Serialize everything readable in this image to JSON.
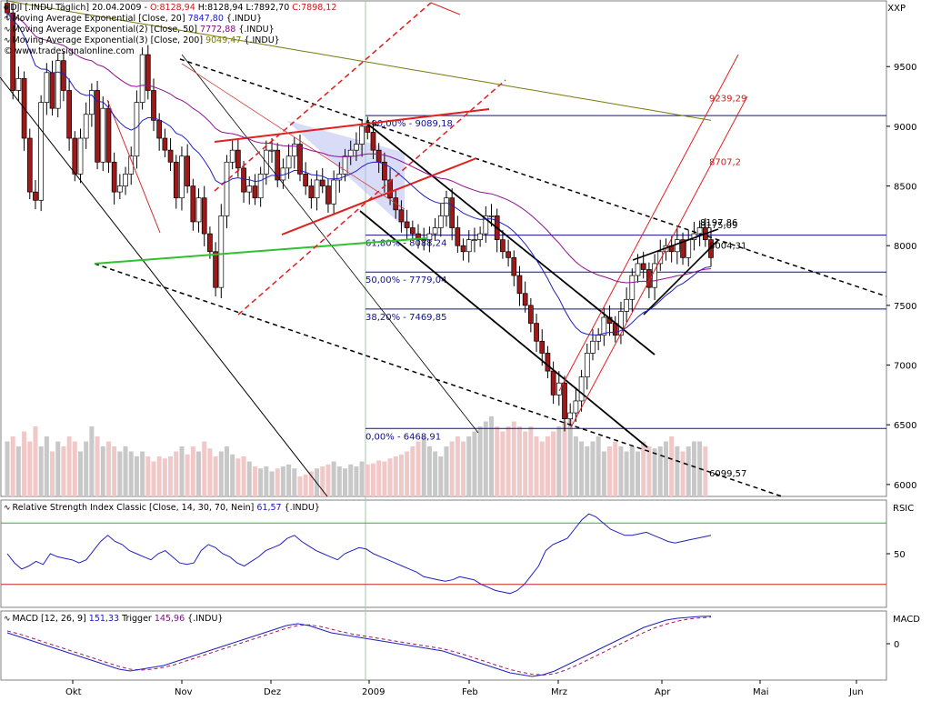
{
  "header": {
    "symbol_line_prefix": "DJI [.INDU  Täglich]",
    "date": "20.04.2009",
    "open": "O:8128,94",
    "high": "H:8128,94",
    "low": "L:7892,70",
    "close": "C:7898,12",
    "ema20_label": "Moving Average Exponential [Close, 20]",
    "ema20_value": "7847,80",
    "ema20_suffix": "{.INDU}",
    "ema50_label": "Moving Average Exponential(2) [Close, 50]",
    "ema50_value": "7772,88",
    "ema50_suffix": "{.INDU}",
    "ema200_label": "Moving Average Exponential(3) [Close, 200]",
    "ema200_value": "9049,47",
    "ema200_suffix": "{.INDU}",
    "copyright": "© www.tradesignalonline.com",
    "exchange": "XXP"
  },
  "rsi_panel": {
    "label": "Relative Strength Index Classic [Close, 14, 30, 70, Nein]",
    "value": "61,57",
    "suffix": "{.INDU}",
    "axis_title": "RSIC",
    "tick": "50"
  },
  "macd_panel": {
    "label": "MACD [12, 26, 9]",
    "value": "151,33",
    "trigger_label": "Trigger",
    "trigger_value": "145,96",
    "suffix": "{.INDU}",
    "axis_title": "MACD",
    "tick": "0"
  },
  "fib_labels": [
    {
      "text": "100,00% - 9089,18",
      "value": 9089.18
    },
    {
      "text": "61,80% - 8088,24",
      "value": 8088.24
    },
    {
      "text": "50,00% - 7779,04",
      "value": 7779.04
    },
    {
      "text": "38,20% - 7469,85",
      "value": 7469.85
    },
    {
      "text": "0,00% - 6468,91",
      "value": 6468.91
    }
  ],
  "annotations": [
    {
      "text": "9239,29",
      "value": 9239.29,
      "color": "#d01818"
    },
    {
      "text": "8707,2",
      "value": 8707.2,
      "color": "#d01818"
    },
    {
      "text": "8197,86",
      "value": 8197.86,
      "color": "#000000"
    },
    {
      "text": "8175,09",
      "value": 8175.09,
      "color": "#000000"
    },
    {
      "text": "8004,31",
      "value": 8004.31,
      "color": "#000000"
    },
    {
      "text": "6099,57",
      "value": 6099.57,
      "color": "#000000"
    }
  ],
  "chart_data": {
    "type": "candlestick",
    "title": "",
    "xlabel": "",
    "ylabel": "",
    "ylim": [
      5900,
      10050
    ],
    "y_ticks": [
      6000,
      6500,
      7000,
      7500,
      8000,
      8500,
      9000,
      9500
    ],
    "y_tick_labels": [
      "6000",
      "6500",
      "7000",
      "7500",
      "8000",
      "8500",
      "9000",
      "9500"
    ],
    "x_tick_labels": [
      "Okt",
      "Nov",
      "Dez",
      "2009",
      "Feb",
      "Mrz",
      "Apr",
      "Mai",
      "Jun"
    ],
    "colors": {
      "up": "#ffffff",
      "down": "#a01818",
      "ema20": "#2020c0",
      "ema50": "#901090",
      "ema200": "#7a7a10",
      "fib": "#101090"
    },
    "ohlc_close": [
      9950,
      9300,
      9400,
      8900,
      8450,
      8380,
      9200,
      9450,
      9150,
      9550,
      9300,
      8900,
      8600,
      8900,
      9100,
      9300,
      8700,
      9150,
      8700,
      8450,
      8500,
      8600,
      8750,
      9200,
      9600,
      9300,
      9050,
      8900,
      8800,
      8700,
      8400,
      8750,
      8500,
      8200,
      8400,
      8100,
      7950,
      7650,
      8250,
      8700,
      8800,
      8650,
      8450,
      8500,
      8400,
      8600,
      8800,
      8800,
      8550,
      8650,
      8750,
      8850,
      8600,
      8500,
      8400,
      8550,
      8500,
      8350,
      8550,
      8600,
      8750,
      8800,
      8850,
      9000,
      8950,
      8800,
      8700,
      8550,
      8400,
      8300,
      8200,
      8150,
      8100,
      8050,
      8050,
      8100,
      8150,
      8250,
      8400,
      8150,
      8000,
      7950,
      8050,
      8050,
      8100,
      8250,
      8250,
      8050,
      7950,
      7900,
      7750,
      7600,
      7500,
      7350,
      7200,
      7100,
      6950,
      6750,
      6850,
      6550,
      6600,
      6700,
      6900,
      7100,
      7200,
      7250,
      7400,
      7350,
      7250,
      7450,
      7550,
      7750,
      7850,
      7800,
      7650,
      7850,
      7950,
      8000,
      7950,
      8050,
      7900,
      8050,
      8100,
      8150,
      8050,
      7900
    ],
    "volume_rel": [
      0.55,
      0.6,
      0.5,
      0.65,
      0.55,
      0.7,
      0.5,
      0.6,
      0.45,
      0.55,
      0.5,
      0.6,
      0.55,
      0.45,
      0.55,
      0.7,
      0.6,
      0.5,
      0.55,
      0.5,
      0.45,
      0.5,
      0.45,
      0.4,
      0.45,
      0.4,
      0.35,
      0.4,
      0.38,
      0.4,
      0.45,
      0.5,
      0.42,
      0.5,
      0.45,
      0.55,
      0.48,
      0.4,
      0.45,
      0.5,
      0.42,
      0.38,
      0.4,
      0.35,
      0.3,
      0.28,
      0.3,
      0.25,
      0.28,
      0.3,
      0.32,
      0.28,
      0.2,
      0.22,
      0.25,
      0.28,
      0.3,
      0.32,
      0.35,
      0.3,
      0.28,
      0.32,
      0.3,
      0.35,
      0.32,
      0.33,
      0.36,
      0.35,
      0.38,
      0.4,
      0.42,
      0.45,
      0.5,
      0.55,
      0.6,
      0.5,
      0.45,
      0.4,
      0.5,
      0.55,
      0.6,
      0.55,
      0.6,
      0.65,
      0.7,
      0.75,
      0.8,
      0.7,
      0.65,
      0.7,
      0.75,
      0.7,
      0.65,
      0.7,
      0.6,
      0.55,
      0.6,
      0.65,
      0.7,
      0.75,
      0.8,
      0.6,
      0.55,
      0.5,
      0.55,
      0.6,
      0.45,
      0.5,
      0.55,
      0.5,
      0.45,
      0.5,
      0.45,
      0.55,
      0.5,
      0.48,
      0.5,
      0.55,
      0.6,
      0.5,
      0.45,
      0.5,
      0.55,
      0.55,
      0.5
    ],
    "rsi": [
      50,
      44,
      40,
      42,
      45,
      43,
      50,
      48,
      47,
      46,
      44,
      46,
      52,
      58,
      62,
      58,
      56,
      52,
      50,
      48,
      46,
      50,
      52,
      48,
      44,
      43,
      44,
      52,
      56,
      54,
      50,
      48,
      44,
      42,
      45,
      48,
      52,
      54,
      56,
      60,
      62,
      58,
      55,
      52,
      50,
      48,
      46,
      50,
      52,
      54,
      53,
      50,
      48,
      46,
      44,
      42,
      40,
      38,
      35,
      34,
      33,
      32,
      33,
      35,
      34,
      33,
      30,
      28,
      26,
      25,
      24,
      26,
      30,
      36,
      42,
      52,
      56,
      58,
      60,
      66,
      72,
      76,
      74,
      70,
      66,
      64,
      62,
      62,
      63,
      64,
      62,
      60,
      58,
      57,
      58,
      59,
      60,
      61,
      62
    ],
    "rsi_ylim": [
      15,
      85
    ],
    "rsi_levels": [
      30,
      70
    ],
    "macd": [
      60,
      40,
      20,
      0,
      -20,
      -40,
      -60,
      -80,
      -100,
      -120,
      -140,
      -150,
      -140,
      -130,
      -120,
      -100,
      -80,
      -60,
      -40,
      -20,
      0,
      20,
      40,
      60,
      80,
      100,
      110,
      100,
      80,
      60,
      50,
      40,
      30,
      20,
      10,
      0,
      -10,
      -20,
      -30,
      -40,
      -60,
      -80,
      -100,
      -120,
      -140,
      -160,
      -170,
      -180,
      -170,
      -150,
      -120,
      -90,
      -60,
      -30,
      0,
      30,
      60,
      90,
      110,
      130,
      140,
      145,
      150,
      151
    ],
    "macd_trigger": [
      70,
      55,
      35,
      15,
      -5,
      -25,
      -45,
      -65,
      -85,
      -105,
      -125,
      -140,
      -145,
      -140,
      -130,
      -115,
      -95,
      -75,
      -55,
      -35,
      -15,
      5,
      25,
      45,
      65,
      85,
      100,
      104,
      95,
      80,
      65,
      52,
      42,
      32,
      22,
      12,
      2,
      -8,
      -18,
      -28,
      -44,
      -62,
      -82,
      -102,
      -122,
      -142,
      -156,
      -168,
      -172,
      -165,
      -145,
      -118,
      -88,
      -58,
      -28,
      2,
      32,
      62,
      88,
      108,
      124,
      136,
      142,
      146
    ],
    "macd_ylim": [
      -200,
      180
    ]
  }
}
